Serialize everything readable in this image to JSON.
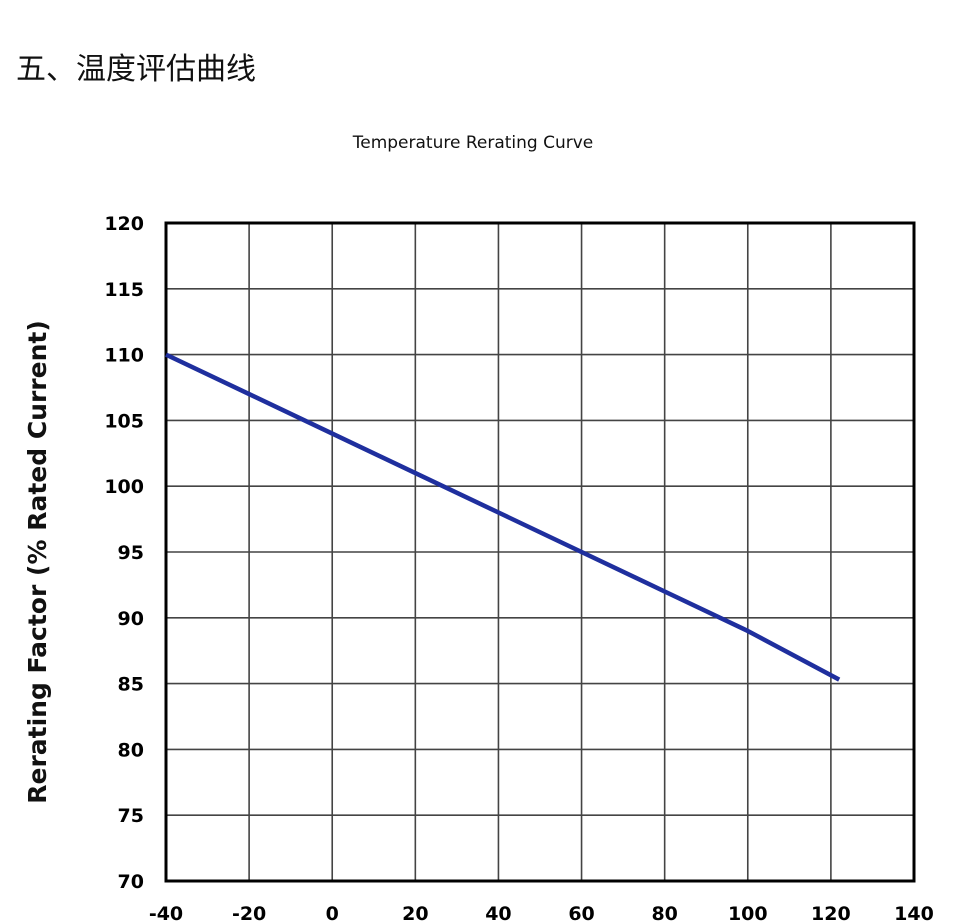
{
  "page": {
    "heading": "五、温度评估曲线"
  },
  "chart_data": {
    "type": "line",
    "title": "Temperature Rerating Curve",
    "xlabel": "",
    "ylabel": "Rerating Factor (% Rated Current)",
    "xlim": [
      -40,
      140
    ],
    "ylim": [
      70,
      120
    ],
    "xticks": [
      -40,
      -20,
      0,
      20,
      40,
      60,
      80,
      100,
      120,
      140
    ],
    "yticks": [
      70,
      75,
      80,
      85,
      90,
      95,
      100,
      105,
      110,
      115,
      120
    ],
    "grid": true,
    "series": [
      {
        "x": [
          -40,
          -20,
          0,
          20,
          40,
          60,
          80,
          100,
          122
        ],
        "y": [
          110,
          107,
          104,
          101,
          98,
          95,
          92,
          89,
          85.3
        ]
      }
    ],
    "colors": {
      "line": "#1f2f9e",
      "grid": "#444444",
      "frame": "#000000"
    }
  }
}
